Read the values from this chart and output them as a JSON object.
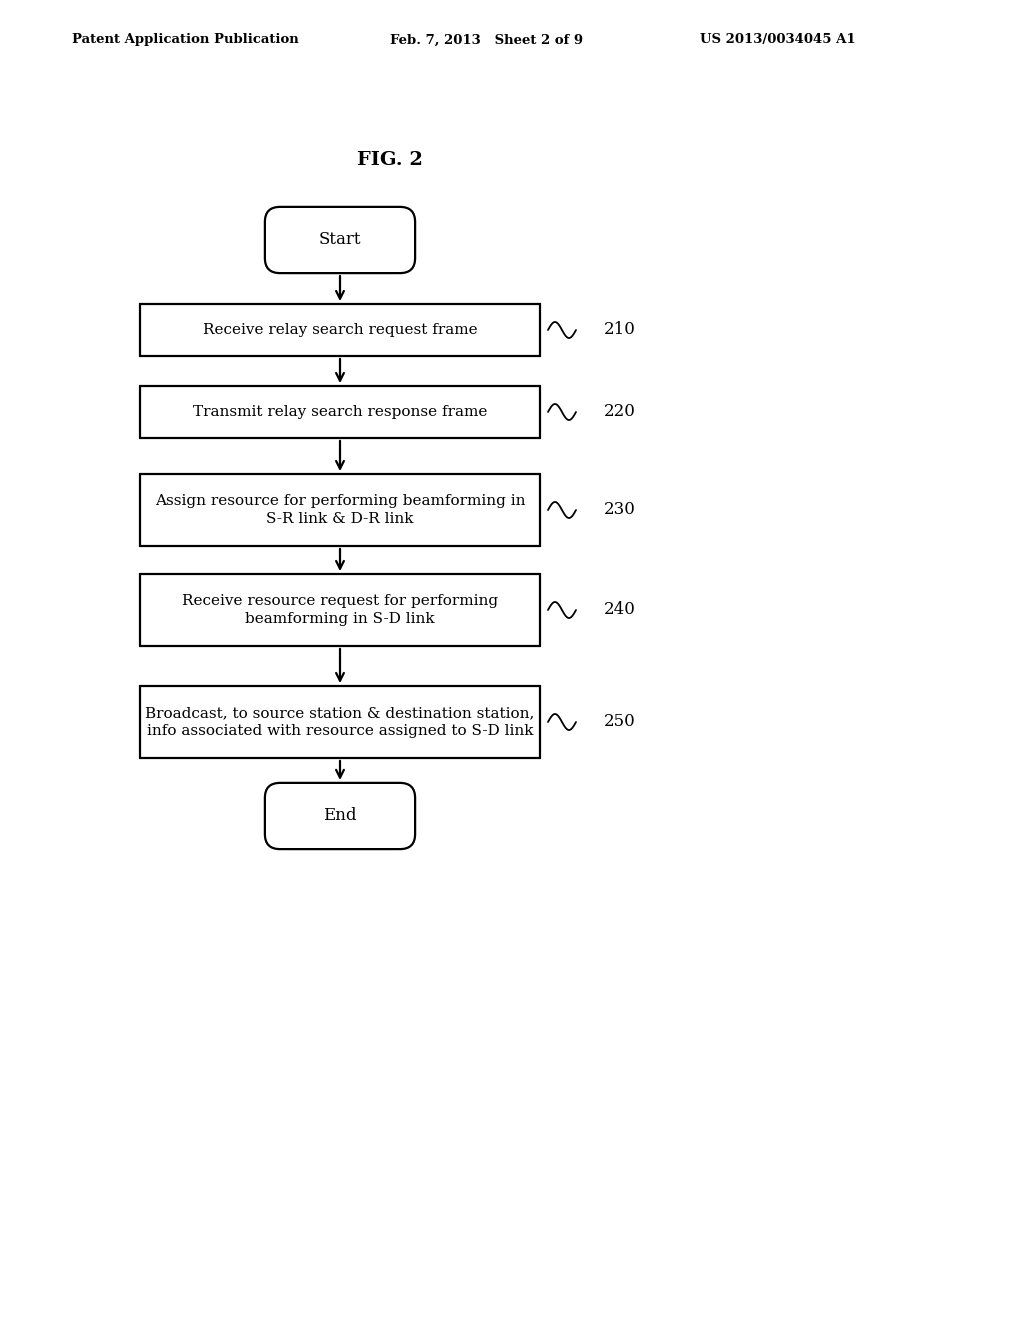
{
  "background_color": "#ffffff",
  "header_left": "Patent Application Publication",
  "header_mid": "Feb. 7, 2013   Sheet 2 of 9",
  "header_right": "US 2013/0034045 A1",
  "fig_label": "FIG. 2",
  "start_label": "Start",
  "end_label": "End",
  "boxes": [
    {
      "label": "Receive relay search request frame",
      "ref": "210"
    },
    {
      "label": "Transmit relay search response frame",
      "ref": "220"
    },
    {
      "label": "Assign resource for performing beamforming in\nS-R link & D-R link",
      "ref": "230"
    },
    {
      "label": "Receive resource request for performing\nbeamforming in S-D link",
      "ref": "240"
    },
    {
      "label": "Broadcast, to source station & destination station,\ninfo associated with resource assigned to S-D link",
      "ref": "250"
    }
  ]
}
